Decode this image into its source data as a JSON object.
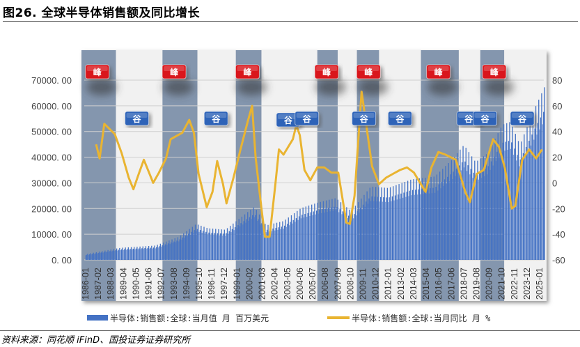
{
  "title": "图26. 全球半导体销售额及同比增长",
  "source": "资料来源：同花顺 iFinD、国投证券证券研究所",
  "colors": {
    "bars": "#4472c4",
    "line": "#e9b431",
    "band_dark": "#8496ae",
    "band_light": "#f1f1f1",
    "peak": "#d9161c",
    "valley": "#2e63b8"
  },
  "chart_data": {
    "type": "bar+line",
    "title": "",
    "grid": true,
    "legend_position": "bottom",
    "y_left": {
      "range": [
        0,
        70000
      ],
      "ticks": [
        "0. 00",
        "10000. 00",
        "20000. 00",
        "30000. 00",
        "40000. 00",
        "50000. 00",
        "60000. 00",
        "70000. 00"
      ]
    },
    "y_right": {
      "range": [
        -60,
        80
      ],
      "ticks": [
        "-60",
        "-40",
        "-20",
        "0",
        "20",
        "40",
        "60",
        "80"
      ]
    },
    "x_range": [
      "1986-01",
      "2025-06"
    ],
    "x_ticks": [
      "1986-01",
      "1987-02",
      "1988-03",
      "1989-04",
      "1990-05",
      "1991-06",
      "1992-07",
      "1993-08",
      "1994-09",
      "1995-10",
      "1996-11",
      "1997-12",
      "1999-01",
      "2000-02",
      "2001-03",
      "2002-04",
      "2003-05",
      "2004-06",
      "2005-07",
      "2006-08",
      "2007-09",
      "2008-10",
      "2009-11",
      "2010-12",
      "2012-01",
      "2013-02",
      "2014-03",
      "2015-04",
      "2016-05",
      "2017-06",
      "2018-07",
      "2019-08",
      "2020-09",
      "2021-10",
      "2022-11",
      "2023-12",
      "2025-01"
    ],
    "series": [
      {
        "name": "半导体:销售额:全球:当月值 月 百万美元",
        "type": "bar",
        "axis": "left",
        "points": [
          [
            1986.0,
            2000
          ],
          [
            1988.0,
            3500
          ],
          [
            1989.0,
            4200
          ],
          [
            1992.0,
            5000
          ],
          [
            1994.0,
            8000
          ],
          [
            1995.5,
            12500
          ],
          [
            1996.5,
            11000
          ],
          [
            1998.0,
            10500
          ],
          [
            2000.5,
            18500
          ],
          [
            2001.5,
            12000
          ],
          [
            2003.0,
            13500
          ],
          [
            2004.5,
            18000
          ],
          [
            2006.0,
            20000
          ],
          [
            2007.5,
            21500
          ],
          [
            2008.8,
            17000
          ],
          [
            2010.5,
            25500
          ],
          [
            2012.0,
            25000
          ],
          [
            2014.0,
            28000
          ],
          [
            2016.0,
            29000
          ],
          [
            2017.5,
            35000
          ],
          [
            2018.5,
            40000
          ],
          [
            2019.5,
            34000
          ],
          [
            2020.5,
            37000
          ],
          [
            2021.8,
            47000
          ],
          [
            2022.5,
            48000
          ],
          [
            2023.3,
            40000
          ],
          [
            2024.5,
            52000
          ],
          [
            2025.4,
            60000
          ]
        ]
      },
      {
        "name": "半导体:销售额:全球:当月同比 月 %",
        "type": "line",
        "axis": "right",
        "points": [
          [
            1986.9,
            30
          ],
          [
            1987.2,
            19
          ],
          [
            1987.6,
            46
          ],
          [
            1988.5,
            38
          ],
          [
            1989.1,
            23
          ],
          [
            1989.7,
            4
          ],
          [
            1990.1,
            -5
          ],
          [
            1990.6,
            8
          ],
          [
            1991.0,
            18
          ],
          [
            1991.4,
            9
          ],
          [
            1991.8,
            0
          ],
          [
            1992.3,
            8
          ],
          [
            1992.9,
            19
          ],
          [
            1993.3,
            34
          ],
          [
            1993.9,
            37
          ],
          [
            1994.3,
            39
          ],
          [
            1994.9,
            49
          ],
          [
            1995.3,
            39
          ],
          [
            1995.7,
            7
          ],
          [
            1996.4,
            -19
          ],
          [
            1996.9,
            -7
          ],
          [
            1997.3,
            17
          ],
          [
            1997.8,
            -1
          ],
          [
            1998.1,
            -16
          ],
          [
            1998.7,
            4
          ],
          [
            1999.3,
            26
          ],
          [
            1999.9,
            47
          ],
          [
            2000.3,
            60
          ],
          [
            2000.6,
            20
          ],
          [
            2001.1,
            -20
          ],
          [
            2001.4,
            -42
          ],
          [
            2001.8,
            -42
          ],
          [
            2002.3,
            -1
          ],
          [
            2002.6,
            26
          ],
          [
            2003.0,
            22
          ],
          [
            2003.8,
            34
          ],
          [
            2004.1,
            45
          ],
          [
            2004.4,
            37
          ],
          [
            2004.8,
            10
          ],
          [
            2005.3,
            2
          ],
          [
            2005.9,
            12
          ],
          [
            2006.5,
            12
          ],
          [
            2007.1,
            8
          ],
          [
            2007.7,
            8
          ],
          [
            2008.4,
            -31
          ],
          [
            2008.7,
            -32
          ],
          [
            2009.1,
            -10
          ],
          [
            2009.7,
            71
          ],
          [
            2010.2,
            39
          ],
          [
            2010.6,
            13
          ],
          [
            2011.2,
            -1
          ],
          [
            2011.8,
            4
          ],
          [
            2012.4,
            7
          ],
          [
            2013.0,
            10
          ],
          [
            2013.6,
            12
          ],
          [
            2014.2,
            8
          ],
          [
            2014.8,
            -1
          ],
          [
            2015.2,
            -7
          ],
          [
            2015.7,
            12
          ],
          [
            2016.3,
            24
          ],
          [
            2016.9,
            22
          ],
          [
            2017.8,
            18
          ],
          [
            2018.6,
            -7
          ],
          [
            2019.0,
            -15
          ],
          [
            2019.6,
            7
          ],
          [
            2020.2,
            10
          ],
          [
            2021.0,
            34
          ],
          [
            2021.5,
            28
          ],
          [
            2022.0,
            12
          ],
          [
            2022.6,
            -20
          ],
          [
            2022.9,
            -18
          ],
          [
            2023.5,
            18
          ],
          [
            2024.1,
            26
          ],
          [
            2024.7,
            19
          ],
          [
            2025.2,
            26
          ]
        ]
      }
    ],
    "shaded_periods": [
      [
        1985.6,
        1988.6
      ],
      [
        1992.6,
        1995.6
      ],
      [
        1998.9,
        2001.1
      ],
      [
        2005.9,
        2007.65
      ],
      [
        2009.3,
        2011.2
      ],
      [
        2014.8,
        2018.05
      ],
      [
        2019.9,
        2021.95
      ]
    ],
    "annotations": {
      "peak_label": "峰",
      "valley_label": "谷",
      "peaks": [
        1987.0,
        1993.6,
        1999.9,
        2006.7,
        2010.3,
        2016.3,
        2021.1
      ],
      "valleys": [
        1990.4,
        1997.2,
        2003.4,
        2005.0,
        2009.9,
        2013.0,
        2018.9,
        2020.3,
        2023.5
      ]
    }
  }
}
